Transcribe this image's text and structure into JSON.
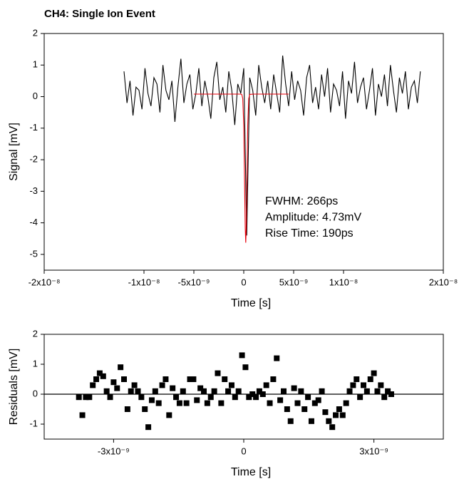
{
  "chart_data": [
    {
      "type": "line",
      "title": "CH4: Single Ion Event",
      "xlabel": "Time [s]",
      "ylabel": "Signal [mV]",
      "xlim": [
        -2e-08,
        2e-08
      ],
      "ylim": [
        -5.5,
        2
      ],
      "xticks": [
        {
          "value": -2e-08,
          "label": "-2x10⁻⁸"
        },
        {
          "value": -1e-08,
          "label": "-1x10⁻⁸"
        },
        {
          "value": -5e-09,
          "label": "-5x10⁻⁹"
        },
        0,
        {
          "value": 5e-09,
          "label": "5x10⁻⁹"
        },
        {
          "value": 1e-08,
          "label": "1x10⁻⁸"
        },
        {
          "value": 2e-08,
          "label": "2x10⁻⁸"
        }
      ],
      "yticks": [
        2,
        1,
        0,
        -1,
        -2,
        -3,
        -4,
        -5
      ],
      "annotations": [
        "FWHM: 266ps",
        "Amplitude: 4.73mV",
        "Rise Time: 190ps"
      ],
      "series": [
        {
          "color": "#000000",
          "x": [
            -1.2e-08,
            -1.17e-08,
            -1.14e-08,
            -1.11e-08,
            -1.08e-08,
            -1.05e-08,
            -1.02e-08,
            -9.9e-09,
            -9.6e-09,
            -9.3e-09,
            -9e-09,
            -8.7e-09,
            -8.4e-09,
            -8.1e-09,
            -7.8e-09,
            -7.5e-09,
            -7.2e-09,
            -6.9e-09,
            -6.6e-09,
            -6.3e-09,
            -6e-09,
            -5.7e-09,
            -5.4e-09,
            -5.1e-09,
            -4.8e-09,
            -4.5e-09,
            -4.2e-09,
            -3.9e-09,
            -3.6e-09,
            -3.3e-09,
            -3e-09,
            -2.7e-09,
            -2.4e-09,
            -2.1e-09,
            -1.8e-09,
            -1.5e-09,
            -1.2e-09,
            -9e-10,
            -6e-10,
            -3e-10,
            0,
            3e-10,
            6e-10,
            9e-10,
            1.2e-09,
            1.5e-09,
            1.8e-09,
            2.1e-09,
            2.4e-09,
            2.7e-09,
            3e-09,
            3.3e-09,
            3.6e-09,
            3.9e-09,
            4.2e-09,
            4.5e-09,
            4.8e-09,
            5.1e-09,
            5.4e-09,
            5.7e-09,
            6e-09,
            6.3e-09,
            6.6e-09,
            6.9e-09,
            7.2e-09,
            7.5e-09,
            7.8e-09,
            8.1e-09,
            8.4e-09,
            8.7e-09,
            9e-09,
            9.3e-09,
            9.6e-09,
            9.9e-09,
            1.02e-08,
            1.05e-08,
            1.08e-08,
            1.11e-08,
            1.14e-08,
            1.17e-08,
            1.2e-08,
            1.23e-08,
            1.26e-08,
            1.29e-08,
            1.32e-08,
            1.35e-08,
            1.38e-08,
            1.41e-08,
            1.44e-08,
            1.47e-08,
            1.5e-08,
            1.53e-08,
            1.56e-08,
            1.59e-08,
            1.62e-08,
            1.65e-08,
            1.68e-08,
            1.71e-08,
            1.74e-08,
            1.77e-08
          ],
          "values": [
            0.8,
            -0.2,
            0.5,
            -0.6,
            0.3,
            0.2,
            -0.4,
            0.9,
            0.1,
            -0.3,
            0.6,
            0.4,
            -0.5,
            1.0,
            0.2,
            -0.1,
            0.5,
            -0.8,
            0.3,
            1.2,
            -0.2,
            0.4,
            0.7,
            -0.4,
            0.1,
            0.9,
            -0.3,
            0.5,
            0.0,
            -0.7,
            0.6,
            1.1,
            -0.1,
            0.3,
            -0.5,
            0.8,
            0.2,
            -0.9,
            0.4,
            0.1,
            0.9,
            -4.4,
            0.6,
            0.2,
            -0.6,
            1.0,
            0.3,
            -0.2,
            0.5,
            -0.4,
            0.7,
            0.1,
            -0.5,
            1.3,
            0.4,
            -0.3,
            0.8,
            -0.1,
            0.5,
            0.2,
            -0.6,
            0.6,
            1.0,
            -0.2,
            0.3,
            -0.4,
            0.7,
            0.0,
            0.9,
            -0.5,
            0.4,
            0.2,
            -0.3,
            0.8,
            -0.7,
            0.5,
            0.1,
            1.1,
            -0.2,
            0.3,
            0.6,
            -0.4,
            0.2,
            0.9,
            -0.6,
            0.4,
            0.0,
            0.7,
            -0.3,
            1.0,
            0.2,
            -0.5,
            0.6,
            0.1,
            0.8,
            -0.4,
            0.3,
            0.5,
            -0.2,
            0.8
          ]
        },
        {
          "color": "#e8000b",
          "x": [
            -5e-09,
            -1e-09,
            -3e-10,
            -2e-10,
            -1e-10,
            0,
            1e-10,
            1.5e-10,
            2e-10,
            2.5e-10,
            3e-10,
            4e-10,
            5e-10,
            6e-10,
            1e-09,
            4.5e-09
          ],
          "values": [
            0.08,
            0.08,
            0.08,
            0.07,
            -0.06,
            -0.91,
            -3.11,
            -4.19,
            -4.63,
            -4.19,
            -3.11,
            -0.91,
            -0.06,
            0.07,
            0.08,
            0.08
          ]
        }
      ]
    },
    {
      "type": "scatter",
      "xlabel": "Time [s]",
      "ylabel": "Residuals [mV]",
      "xlim": [
        -4.6e-09,
        4.6e-09
      ],
      "ylim": [
        -1.5,
        2
      ],
      "xticks": [
        {
          "value": -3e-09,
          "label": "-3x10⁻⁹"
        },
        0,
        {
          "value": 3e-09,
          "label": "3x10⁻⁹"
        }
      ],
      "yticks": [
        2,
        1,
        0,
        -1
      ],
      "hlines": [
        0
      ],
      "series": [
        {
          "color": "#000000",
          "x": [
            -3.8e-09,
            -3.72e-09,
            -3.64e-09,
            -3.56e-09,
            -3.48e-09,
            -3.4e-09,
            -3.32e-09,
            -3.24e-09,
            -3.16e-09,
            -3.08e-09,
            -3e-09,
            -2.92e-09,
            -2.84e-09,
            -2.76e-09,
            -2.68e-09,
            -2.6e-09,
            -2.52e-09,
            -2.44e-09,
            -2.36e-09,
            -2.28e-09,
            -2.2e-09,
            -2.12e-09,
            -2.04e-09,
            -1.96e-09,
            -1.88e-09,
            -1.8e-09,
            -1.72e-09,
            -1.64e-09,
            -1.56e-09,
            -1.48e-09,
            -1.4e-09,
            -1.32e-09,
            -1.24e-09,
            -1.16e-09,
            -1.08e-09,
            -1e-09,
            -9.2e-10,
            -8.4e-10,
            -7.6e-10,
            -6.8e-10,
            -6e-10,
            -5.2e-10,
            -4.4e-10,
            -3.6e-10,
            -2.8e-10,
            -2e-10,
            -1.2e-10,
            -4e-11,
            4e-11,
            1.2e-10,
            2e-10,
            2.8e-10,
            3.6e-10,
            4.4e-10,
            5.2e-10,
            6e-10,
            6.8e-10,
            7.6e-10,
            8.4e-10,
            9.2e-10,
            1e-09,
            1.08e-09,
            1.16e-09,
            1.24e-09,
            1.32e-09,
            1.4e-09,
            1.48e-09,
            1.56e-09,
            1.64e-09,
            1.72e-09,
            1.8e-09,
            1.88e-09,
            1.96e-09,
            2.04e-09,
            2.12e-09,
            2.2e-09,
            2.28e-09,
            2.36e-09,
            2.44e-09,
            2.52e-09,
            2.6e-09,
            2.68e-09,
            2.76e-09,
            2.84e-09,
            2.92e-09,
            3e-09,
            3.08e-09,
            3.16e-09,
            3.24e-09,
            3.32e-09,
            3.4e-09
          ],
          "values": [
            -0.1,
            -0.7,
            -0.1,
            -0.1,
            0.3,
            0.5,
            0.7,
            0.6,
            0.1,
            -0.1,
            0.4,
            0.2,
            0.9,
            0.5,
            -0.5,
            0.1,
            0.3,
            0.1,
            -0.1,
            -0.5,
            -1.1,
            -0.2,
            0.1,
            -0.3,
            0.3,
            0.5,
            -0.7,
            0.2,
            -0.1,
            -0.3,
            0.1,
            -0.3,
            0.5,
            0.5,
            -0.2,
            0.2,
            0.1,
            -0.3,
            -0.1,
            0.1,
            0.7,
            -0.3,
            0.5,
            0.1,
            0.3,
            -0.1,
            0.1,
            1.3,
            0.9,
            -0.1,
            0.0,
            -0.1,
            0.1,
            0.0,
            0.3,
            -0.3,
            0.5,
            1.2,
            -0.2,
            0.1,
            -0.5,
            -0.9,
            0.2,
            -0.3,
            0.1,
            -0.5,
            -0.1,
            -0.9,
            -0.3,
            -0.2,
            0.1,
            -0.6,
            -0.9,
            -1.1,
            -0.7,
            -0.5,
            -0.7,
            -0.3,
            0.1,
            0.3,
            0.5,
            -0.1,
            0.3,
            0.1,
            0.5,
            0.7,
            0.1,
            0.3,
            -0.1,
            0.1,
            0.0
          ]
        }
      ]
    }
  ]
}
